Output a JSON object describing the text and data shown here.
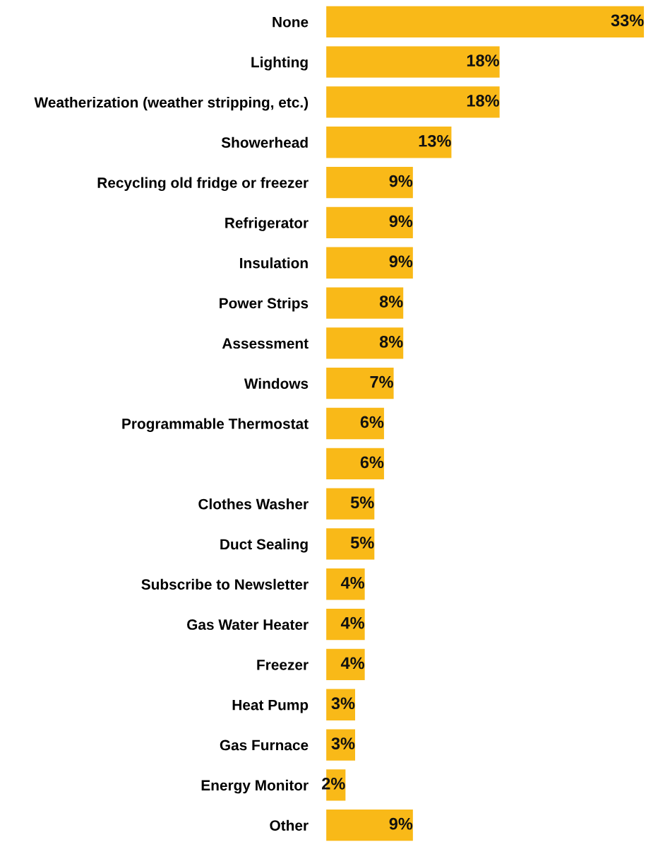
{
  "chart_data": {
    "type": "bar",
    "orientation": "horizontal",
    "categories": [
      "None",
      "Lighting",
      "Weatherization (weather stripping, etc.)",
      "Showerhead",
      "Recycling old fridge or freezer",
      "Refrigerator",
      "Insulation",
      "Power Strips",
      "Assessment",
      "Windows",
      "Programmable Thermostat",
      null,
      "Clothes Washer",
      "Duct Sealing",
      "Subscribe to Newsletter",
      "Gas Water Heater",
      "Freezer",
      "Heat Pump",
      "Gas Furnace",
      "Energy Monitor",
      "Other"
    ],
    "values": [
      33,
      18,
      18,
      13,
      9,
      9,
      9,
      8,
      8,
      7,
      6,
      6,
      5,
      5,
      4,
      4,
      4,
      3,
      3,
      2,
      9
    ],
    "value_labels": [
      "33%",
      "18%",
      "18%",
      "13%",
      "9%",
      "9%",
      "9%",
      "8%",
      "8%",
      "7%",
      "6%",
      "6%",
      "5%",
      "5%",
      "4%",
      "4%",
      "4%",
      "3%",
      "3%",
      "2%",
      "9%"
    ],
    "color": "#f9b918",
    "grid": false,
    "legend": false,
    "tick_labels": "y"
  }
}
